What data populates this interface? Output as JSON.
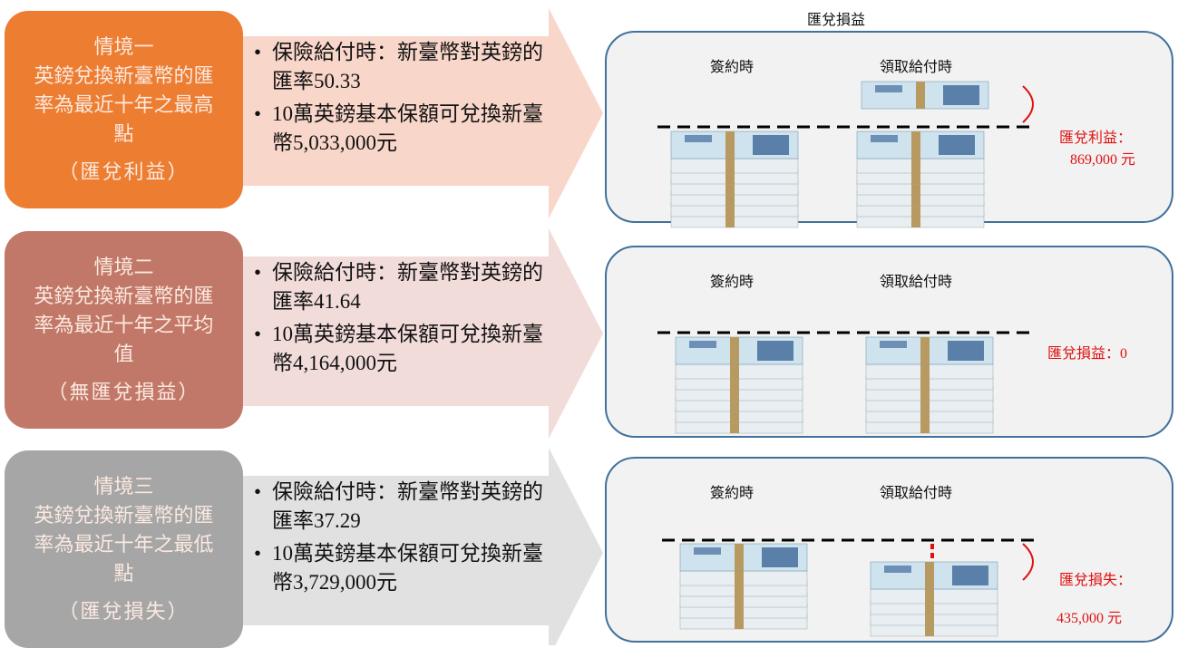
{
  "title": "匯兌損益",
  "scenarios": [
    {
      "name": "情境一",
      "description": "英鎊兌換新臺幣的匯率為最近十年之最高點",
      "result": "（匯兌利益）",
      "bullets": [
        "保險給付時：新臺幣對英鎊的匯率50.33",
        "10萬英鎊基本保額可兌換新臺幣5,033,000元"
      ],
      "labels": [
        "簽約時",
        "領取給付時"
      ],
      "outcome": [
        "匯兌利益：",
        "869,000 元"
      ]
    },
    {
      "name": "情境二",
      "description": "英鎊兌換新臺幣的匯率為最近十年之平均值",
      "result": "（無匯兌損益）",
      "bullets": [
        "保險給付時：新臺幣對英鎊的匯率41.64",
        "10萬英鎊基本保額可兌換新臺幣4,164,000元"
      ],
      "labels": [
        "簽約時",
        "領取給付時"
      ],
      "outcome": [
        "匯兌損益：0"
      ]
    },
    {
      "name": "情境三",
      "description": "英鎊兌換新臺幣的匯率為最近十年之最低點",
      "result": "（匯兌損失）",
      "bullets": [
        "保險給付時：新臺幣對英鎊的匯率37.29",
        "10萬英鎊基本保額可兌換新臺幣3,729,000元"
      ],
      "labels": [
        "簽約時",
        "領取給付時"
      ],
      "outcome": [
        "匯兌損失：",
        "435,000 元"
      ]
    }
  ]
}
